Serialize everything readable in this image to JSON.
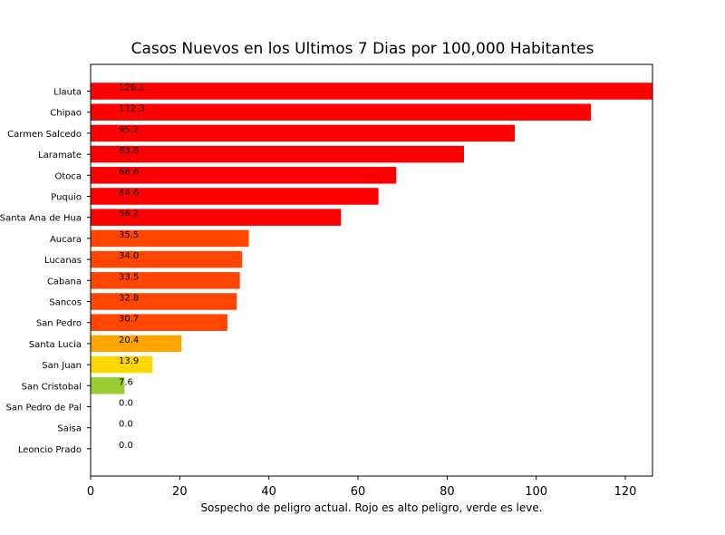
{
  "chart_data": {
    "type": "bar",
    "orientation": "horizontal",
    "title": "Casos Nuevos en los Ultimos 7 Dias por 100,000 Habitantes",
    "xlabel": "Sospecho de peligro actual. Rojo es alto peligro, verde es leve.",
    "ylabel": "",
    "xlim": [
      0,
      126.1
    ],
    "x_ticks": [
      "0",
      "20",
      "40",
      "60",
      "80",
      "100",
      "120"
    ],
    "categories": [
      "Llauta",
      "Chipao",
      "Carmen Salcedo",
      "Laramate",
      "Otoca",
      "Puquio",
      "Santa Ana de Hua",
      "Aucara",
      "Lucanas",
      "Cabana",
      "Sancos",
      "San Pedro",
      "Santa Lucia",
      "San Juan",
      "San Cristobal",
      "San Pedro de Pal",
      "Saisa",
      "Leoncio Prado"
    ],
    "values": [
      126.1,
      112.3,
      95.2,
      83.8,
      68.6,
      64.6,
      56.2,
      35.5,
      34.0,
      33.5,
      32.8,
      30.7,
      20.4,
      13.9,
      7.6,
      0.0,
      0.0,
      0.0
    ],
    "value_labels": [
      "126.1",
      "112.3",
      "95.2",
      "83.8",
      "68.6",
      "64.6",
      "56.2",
      "35.5",
      "34.0",
      "33.5",
      "32.8",
      "30.7",
      "20.4",
      "13.9",
      "7.6",
      "0.0",
      "0.0",
      "0.0"
    ],
    "colors": [
      "#ff0000",
      "#ff0000",
      "#ff0000",
      "#ff0000",
      "#ff0000",
      "#ff0000",
      "#ff0000",
      "#ff4500",
      "#ff4500",
      "#ff4500",
      "#ff4500",
      "#ff4500",
      "#ffa500",
      "#ffd700",
      "#9acd32",
      "#9acd32",
      "#9acd32",
      "#9acd32"
    ],
    "grid": false,
    "legend": "none"
  }
}
